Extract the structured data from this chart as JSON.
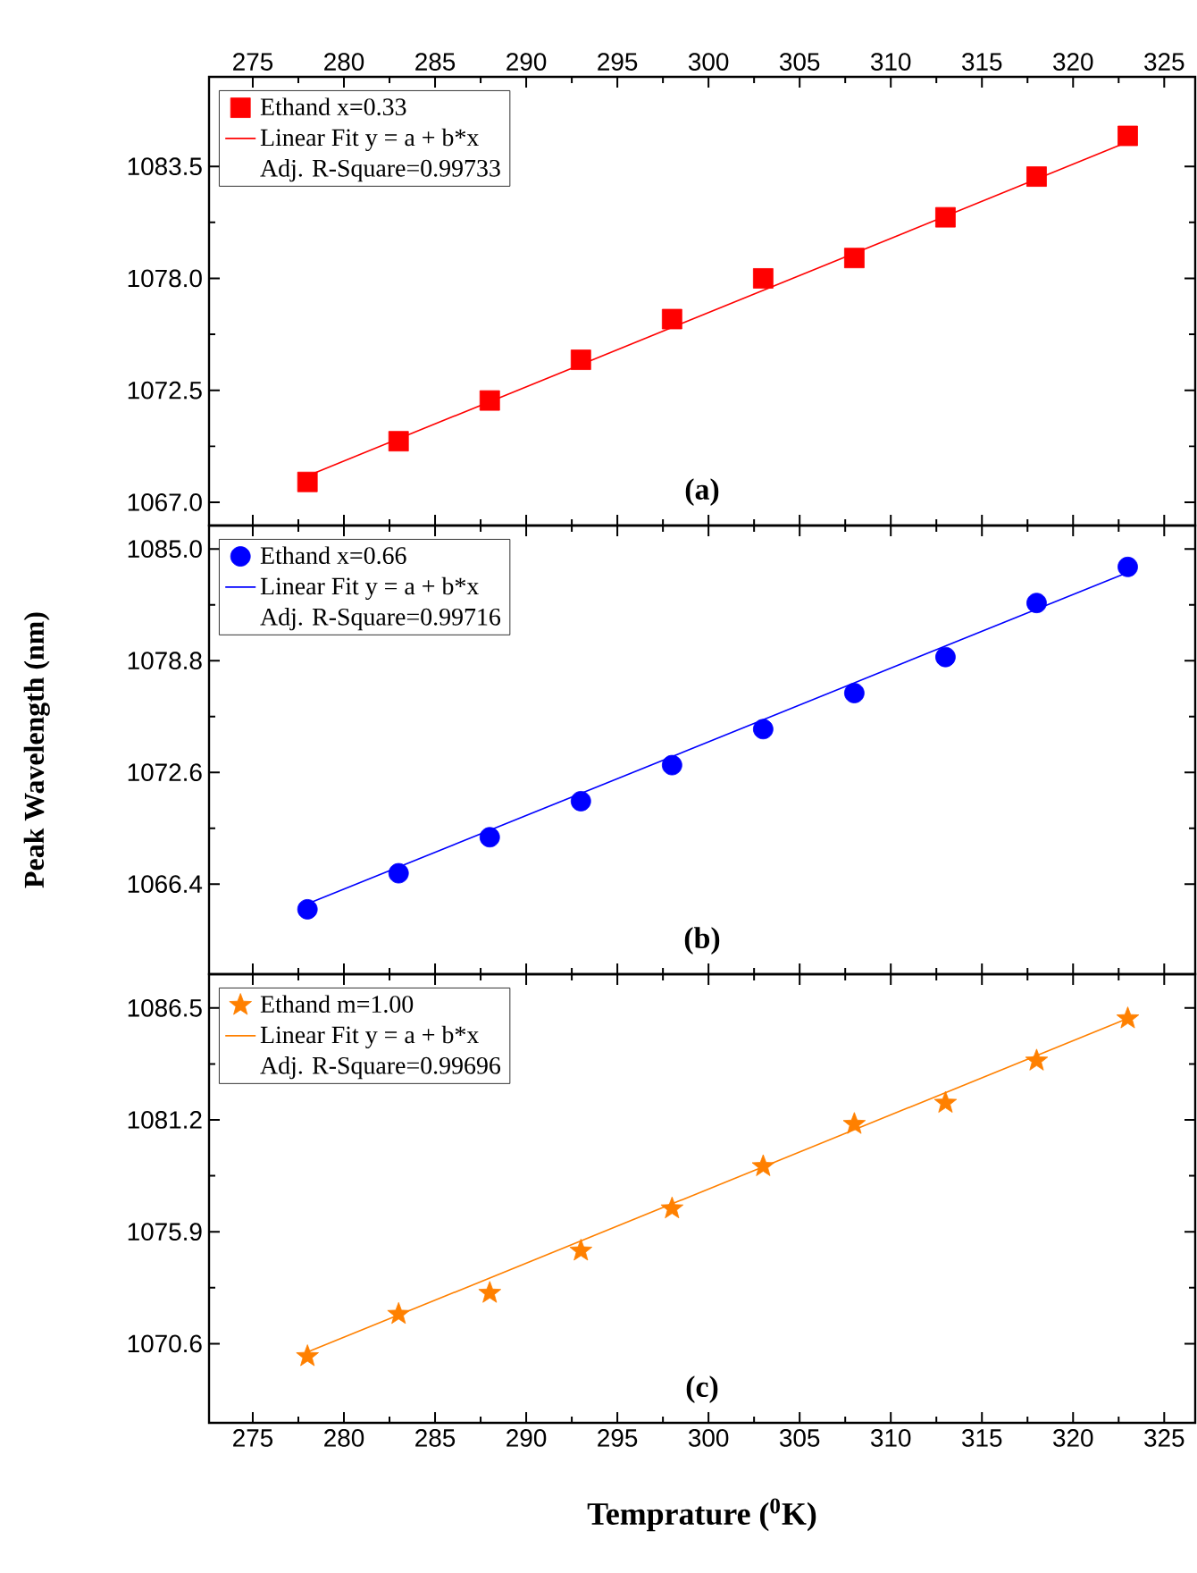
{
  "chart_data": [
    {
      "type": "scatter",
      "xlim": [
        272.6,
        326.7
      ],
      "xticks": [
        275,
        280,
        285,
        290,
        295,
        300,
        305,
        310,
        315,
        320,
        325
      ],
      "ylim": [
        1065.86,
        1087.9
      ],
      "yticks": [
        {
          "value": 1067,
          "label": "1067.0"
        },
        {
          "value": 1072.5,
          "label": "1072.5"
        },
        {
          "value": 1078,
          "label": "1078.0"
        },
        {
          "value": 1083.5,
          "label": "1083.5"
        }
      ],
      "legend": "top left",
      "annotations": [
        "Adj. R-Square=0.99733",
        "(a)"
      ],
      "series": [
        {
          "name": "Ethand x=0.33",
          "marker": "square",
          "color": "#ff0000",
          "x": [
            278,
            283,
            288,
            293,
            298,
            303,
            308,
            313,
            318,
            323
          ],
          "values": [
            1068,
            1070,
            1072,
            1074,
            1076,
            1078,
            1079,
            1081,
            1083,
            1085
          ]
        },
        {
          "name": "Linear Fit y = a + b*x",
          "type": "line",
          "color": "#ff0000",
          "x": [
            278,
            323
          ],
          "values": [
            1068.3,
            1084.7
          ]
        }
      ]
    },
    {
      "type": "scatter",
      "xlim": [
        272.6,
        326.7
      ],
      "xticks": [
        275,
        280,
        285,
        290,
        295,
        300,
        305,
        310,
        315,
        320,
        325
      ],
      "ylim": [
        1061.4,
        1086.3
      ],
      "yticks": [
        {
          "value": 1066.4,
          "label": "1066.4"
        },
        {
          "value": 1072.6,
          "label": "1072.6"
        },
        {
          "value": 1078.8,
          "label": "1078.8"
        },
        {
          "value": 1085,
          "label": "1085.0"
        }
      ],
      "tick_labels": "y",
      "ylabel": "Peak Wavelength (nm)",
      "legend": "top left",
      "annotations": [
        "Adj. R-Square=0.99716",
        "(b)"
      ],
      "series": [
        {
          "name": "Ethand x=0.66",
          "marker": "circle",
          "color": "#0000ff",
          "x": [
            278,
            283,
            288,
            293,
            298,
            303,
            308,
            313,
            318,
            323
          ],
          "values": [
            1065,
            1067,
            1069,
            1071,
            1073,
            1075,
            1077,
            1079,
            1082,
            1084
          ]
        },
        {
          "name": "Linear Fit y = a + b*x",
          "type": "line",
          "color": "#0000ff",
          "x": [
            278,
            323
          ],
          "values": [
            1065.3,
            1083.7
          ]
        }
      ]
    },
    {
      "type": "scatter",
      "xlim": [
        272.6,
        326.7
      ],
      "xticks": [
        275,
        280,
        285,
        290,
        295,
        300,
        305,
        310,
        315,
        320,
        325
      ],
      "ylim": [
        1066.85,
        1088.1
      ],
      "yticks": [
        1070.6,
        1075.9,
        1081.2,
        1086.5
      ],
      "xlabel": "Temprature ($^{0}$K)",
      "legend": "top left",
      "annotations": [
        "Adj. R-Square=0.99696",
        "(c)"
      ],
      "series": [
        {
          "name": "Ethand m=1.00",
          "marker": "star",
          "color": "#ff8000",
          "x": [
            278,
            283,
            288,
            293,
            298,
            303,
            308,
            313,
            318,
            323
          ],
          "values": [
            1070,
            1072,
            1073,
            1075,
            1077,
            1079,
            1081,
            1082,
            1084,
            1086
          ]
        },
        {
          "name": "Linear Fit y = a + b*x",
          "type": "line",
          "color": "#ff8000",
          "x": [
            278,
            323
          ],
          "values": [
            1070.2,
            1086.0
          ]
        }
      ]
    }
  ]
}
